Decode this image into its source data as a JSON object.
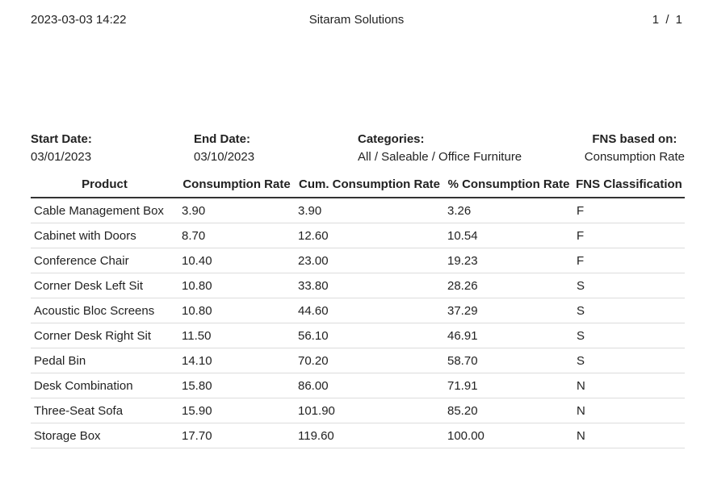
{
  "header": {
    "datetime": "2023-03-03 14:22",
    "company": "Sitaram Solutions",
    "page": "1",
    "page_sep": "/",
    "page_total": "1"
  },
  "filters": {
    "start_label": "Start Date:",
    "start_value": "03/01/2023",
    "end_label": "End Date:",
    "end_value": "03/10/2023",
    "categories_label": "Categories:",
    "categories_value": "All / Saleable / Office Furniture",
    "fns_label": "FNS based on:",
    "fns_value": "Consumption Rate"
  },
  "table": {
    "columns": [
      "Product",
      "Consumption Rate",
      "Cum. Consumption Rate",
      "% Consumption Rate",
      "FNS Classification"
    ],
    "rows": [
      [
        "Cable Management Box",
        "3.90",
        "3.90",
        "3.26",
        "F"
      ],
      [
        "Cabinet with Doors",
        "8.70",
        "12.60",
        "10.54",
        "F"
      ],
      [
        "Conference Chair",
        "10.40",
        "23.00",
        "19.23",
        "F"
      ],
      [
        "Corner Desk Left Sit",
        "10.80",
        "33.80",
        "28.26",
        "S"
      ],
      [
        "Acoustic Bloc Screens",
        "10.80",
        "44.60",
        "37.29",
        "S"
      ],
      [
        "Corner Desk Right Sit",
        "11.50",
        "56.10",
        "46.91",
        "S"
      ],
      [
        "Pedal Bin",
        "14.10",
        "70.20",
        "58.70",
        "S"
      ],
      [
        "Desk Combination",
        "15.80",
        "86.00",
        "71.91",
        "N"
      ],
      [
        "Three-Seat Sofa",
        "15.90",
        "101.90",
        "85.20",
        "N"
      ],
      [
        "Storage Box",
        "17.70",
        "119.60",
        "100.00",
        "N"
      ]
    ]
  }
}
